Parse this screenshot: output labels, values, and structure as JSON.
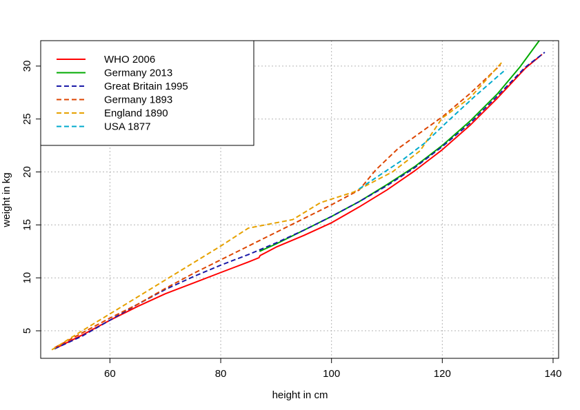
{
  "chart_data": {
    "type": "line",
    "title": "",
    "xlabel": "height in cm",
    "ylabel": "weight in kg",
    "xlim": [
      47.5,
      141
    ],
    "ylim": [
      2.4,
      32.4
    ],
    "xticks": [
      60,
      80,
      100,
      120,
      140
    ],
    "yticks": [
      5,
      10,
      15,
      20,
      25,
      30
    ],
    "grid": true,
    "legend_position": "top-left",
    "series": [
      {
        "name": "WHO 2006",
        "color": "#ff0000",
        "dash": "solid",
        "x": [
          50,
          55,
          60,
          65,
          70,
          75,
          80,
          85,
          86.9,
          87.1,
          90,
          95,
          100,
          105,
          110,
          115,
          120,
          125,
          130,
          135,
          138
        ],
        "y": [
          3.3,
          4.6,
          6.0,
          7.3,
          8.5,
          9.5,
          10.5,
          11.5,
          11.9,
          12.1,
          12.9,
          14.0,
          15.2,
          16.7,
          18.3,
          20.1,
          22.1,
          24.4,
          27.0,
          29.8,
          31.1
        ]
      },
      {
        "name": "Germany 2013",
        "color": "#00aa00",
        "dash": "solid",
        "x": [
          87,
          90,
          95,
          100,
          105,
          110,
          115,
          120,
          125,
          130,
          134,
          137.5
        ],
        "y": [
          12.5,
          13.2,
          14.5,
          15.8,
          17.2,
          18.8,
          20.5,
          22.5,
          24.8,
          27.4,
          29.9,
          32.4
        ]
      },
      {
        "name": "Great Britain 1995",
        "color": "#1a1aa8",
        "dash": "dashed",
        "x": [
          50,
          55,
          60,
          65,
          70,
          75,
          80,
          85,
          90,
          95,
          100,
          105,
          110,
          115,
          120,
          125,
          130,
          135,
          138.5
        ],
        "y": [
          3.3,
          4.5,
          6.0,
          7.5,
          8.9,
          10.1,
          11.2,
          12.2,
          13.3,
          14.5,
          15.8,
          17.2,
          18.7,
          20.4,
          22.4,
          24.6,
          27.2,
          29.9,
          31.3
        ]
      },
      {
        "name": "Germany 1893",
        "color": "#dd4400",
        "dash": "dashed",
        "x": [
          50,
          55,
          60,
          65,
          70,
          75,
          80,
          85,
          90,
          95,
          100,
          105,
          108,
          112,
          116,
          120,
          125,
          130.5
        ],
        "y": [
          3.4,
          4.8,
          6.2,
          7.5,
          9.0,
          10.4,
          11.7,
          13.0,
          14.3,
          15.6,
          16.9,
          18.3,
          20.2,
          22.2,
          23.7,
          25.2,
          27.4,
          30.1
        ]
      },
      {
        "name": "England 1890",
        "color": "#e6a100",
        "dash": "dashed",
        "x": [
          49.5,
          55,
          60,
          65,
          70,
          75,
          80,
          85,
          88,
          93,
          98,
          104,
          111,
          116,
          120,
          125,
          131
        ],
        "y": [
          3.2,
          5.0,
          6.6,
          8.2,
          9.8,
          11.4,
          13.0,
          14.7,
          15.0,
          15.5,
          17.1,
          18.1,
          20.0,
          22.0,
          25.1,
          27.0,
          30.5
        ]
      },
      {
        "name": "USA 1877",
        "color": "#00aacc",
        "dash": "dashed",
        "x": [
          105,
          109,
          113,
          117,
          121,
          126,
          131.5
        ],
        "y": [
          18.4,
          19.8,
          21.2,
          22.8,
          24.8,
          27.2,
          29.7
        ]
      }
    ]
  }
}
